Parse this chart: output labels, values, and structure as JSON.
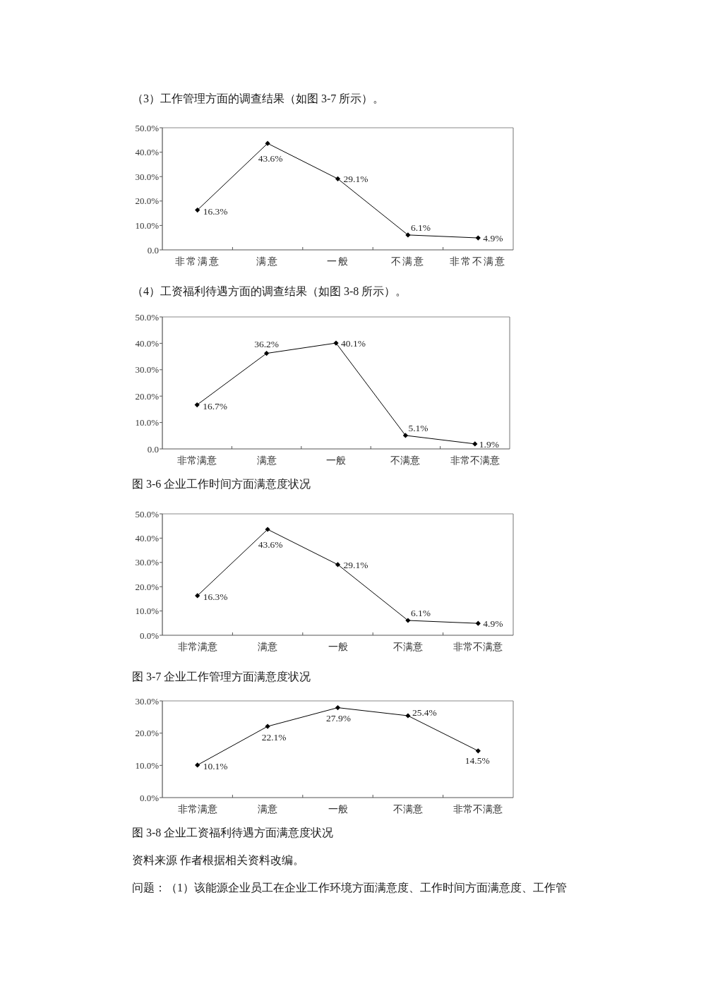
{
  "chart_data": [
    {
      "type": "line",
      "subtitle": "（3）工作管理方面的调查结果（如图 3-7 所示）。",
      "categories": [
        "非常满意",
        "满意",
        "一般",
        "不满意",
        "非常不满意"
      ],
      "series": [
        {
          "color": "#000000",
          "values": [
            16.3,
            43.6,
            29.1,
            6.1,
            4.9
          ],
          "value_labels": [
            "16.3%",
            "43.6%",
            "29.1%",
            "6.1%",
            "4.9%"
          ]
        }
      ],
      "ylim": [
        0,
        50
      ],
      "yticks": [
        {
          "value": 0,
          "label": "0.0"
        },
        {
          "value": 10,
          "label": "10.0%"
        },
        {
          "value": 20,
          "label": "20.0%"
        },
        {
          "value": 30,
          "label": "30.0%"
        },
        {
          "value": 40,
          "label": "40.0%"
        },
        {
          "value": 50,
          "label": "50.0%"
        }
      ],
      "marker": "diamond",
      "line_style": "solid"
    },
    {
      "type": "line",
      "subtitle": "（4）工资福利待遇方面的调查结果（如图 3-8 所示）。",
      "title": "图 3-6 企业工作时间方面满意度状况",
      "categories": [
        "非常满意",
        "满意",
        "一般",
        "不满意",
        "非常不满意"
      ],
      "series": [
        {
          "color": "#000000",
          "values": [
            16.7,
            36.2,
            40.1,
            5.1,
            1.9
          ],
          "value_labels": [
            "16.7%",
            "36.2%",
            "40.1%",
            "5.1%",
            "1.9%"
          ]
        }
      ],
      "ylim": [
        0,
        50
      ],
      "yticks": [
        {
          "value": 0,
          "label": "0.0"
        },
        {
          "value": 10,
          "label": "10.0%"
        },
        {
          "value": 20,
          "label": "20.0%"
        },
        {
          "value": 30,
          "label": "30.0%"
        },
        {
          "value": 40,
          "label": "40.0%"
        },
        {
          "value": 50,
          "label": "50.0%"
        }
      ],
      "marker": "diamond",
      "line_style": "solid"
    },
    {
      "type": "line",
      "title": "图 3-7 企业工作管理方面满意度状况",
      "categories": [
        "非常满意",
        "满意",
        "一般",
        "不满意",
        "非常不满意"
      ],
      "series": [
        {
          "color": "#000000",
          "values": [
            16.3,
            43.6,
            29.1,
            6.1,
            4.9
          ],
          "value_labels": [
            "16.3%",
            "43.6%",
            "29.1%",
            "6.1%",
            "4.9%"
          ]
        }
      ],
      "ylim": [
        0,
        50
      ],
      "yticks": [
        {
          "value": 0,
          "label": "0.0%"
        },
        {
          "value": 10,
          "label": "10.0%"
        },
        {
          "value": 20,
          "label": "20.0%"
        },
        {
          "value": 30,
          "label": "30.0%"
        },
        {
          "value": 40,
          "label": "40.0%"
        },
        {
          "value": 50,
          "label": "50.0%"
        }
      ],
      "marker": "diamond",
      "line_style": "solid"
    },
    {
      "type": "line",
      "title": "图 3-8 企业工资福利待遇方面满意度状况",
      "annotations": [
        "资料来源 作者根据相关资料改编。",
        "问题：（1）该能源企业员工在企业工作环境方面满意度、工作时间方面满意度、工作管"
      ],
      "categories": [
        "非常满意",
        "满意",
        "一般",
        "不满意",
        "非常不满意"
      ],
      "series": [
        {
          "color": "#000000",
          "values": [
            10.1,
            22.1,
            27.9,
            25.4,
            14.5
          ],
          "value_labels": [
            "10.1%",
            "22.1%",
            "27.9%",
            "25.4%",
            "14.5%"
          ]
        }
      ],
      "ylim": [
        0,
        30
      ],
      "yticks": [
        {
          "value": 0,
          "label": "0.0%"
        },
        {
          "value": 10,
          "label": "10.0%"
        },
        {
          "value": 20,
          "label": "20.0%"
        },
        {
          "value": 30,
          "label": "30.0%"
        }
      ],
      "marker": "diamond",
      "line_style": "solid"
    }
  ]
}
